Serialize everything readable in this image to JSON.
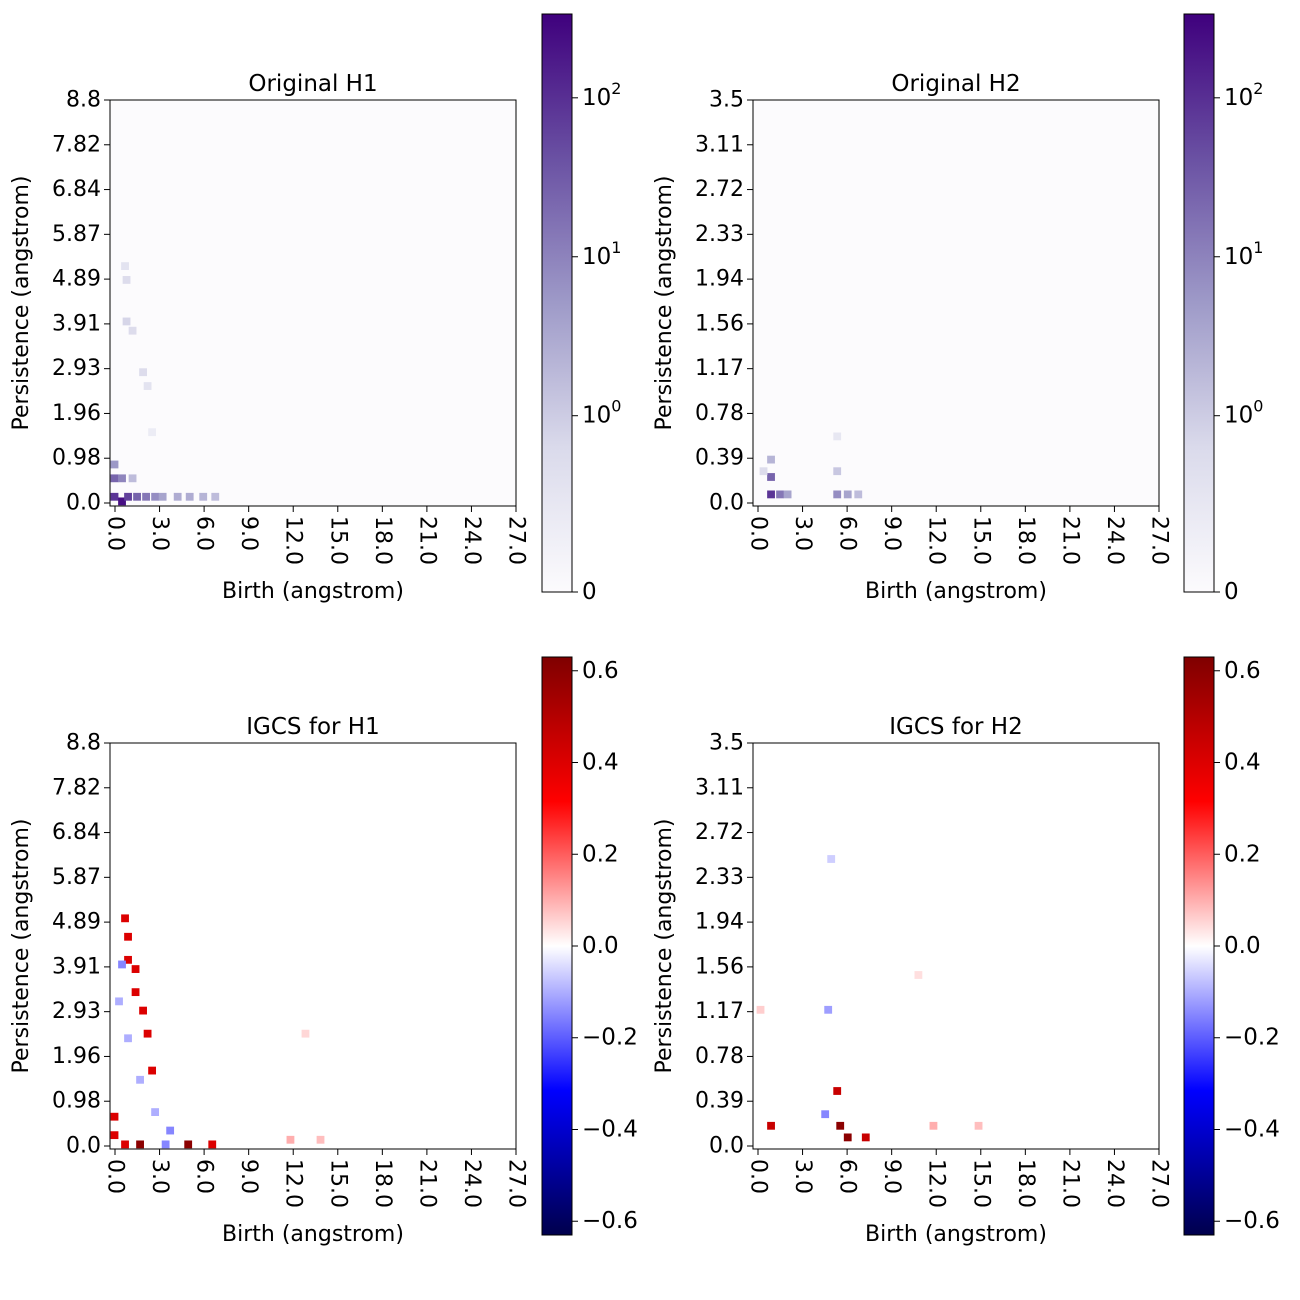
{
  "figure_colors": {
    "purple_low": "#fcfbfd",
    "purple_high": "#3f007d",
    "div_neg": "#00004c",
    "div_pos": "#7f0000",
    "div_red": "#ff0000",
    "div_blue": "#0000ff",
    "div_mid": "#ffffff"
  },
  "chart_data": [
    {
      "id": "orig-h1",
      "type": "heatmap",
      "title": "Original H1",
      "xlabel": "Birth (angstrom)",
      "ylabel": "Persistence (angstrom)",
      "x_ticks": [
        "0.0",
        "3.0",
        "6.0",
        "9.0",
        "12.0",
        "15.0",
        "18.0",
        "21.0",
        "24.0",
        "27.0"
      ],
      "y_ticks": [
        "0.0",
        "0.98",
        "1.96",
        "2.93",
        "3.91",
        "4.89",
        "5.87",
        "6.84",
        "7.82",
        "8.8"
      ],
      "xlim": [
        0,
        27
      ],
      "ylim": [
        0,
        8.8
      ],
      "colormap": "Purples",
      "scale": "symlog",
      "colorbar_ticks": [
        "0",
        "10^0",
        "10^1",
        "10^2"
      ],
      "cells": [
        {
          "x": 0.3,
          "y": 0.2,
          "v": 150
        },
        {
          "x": 0.8,
          "y": 0.1,
          "v": 300
        },
        {
          "x": 1.2,
          "y": 0.2,
          "v": 120
        },
        {
          "x": 0.3,
          "y": 0.6,
          "v": 60
        },
        {
          "x": 0.3,
          "y": 0.9,
          "v": 20
        },
        {
          "x": 0.8,
          "y": 0.6,
          "v": 30
        },
        {
          "x": 1.8,
          "y": 0.2,
          "v": 60
        },
        {
          "x": 2.4,
          "y": 0.2,
          "v": 40
        },
        {
          "x": 3.0,
          "y": 0.2,
          "v": 25
        },
        {
          "x": 3.5,
          "y": 0.2,
          "v": 15
        },
        {
          "x": 4.5,
          "y": 0.2,
          "v": 12
        },
        {
          "x": 5.3,
          "y": 0.2,
          "v": 12
        },
        {
          "x": 6.2,
          "y": 0.2,
          "v": 10
        },
        {
          "x": 7.0,
          "y": 0.2,
          "v": 8
        },
        {
          "x": 1.5,
          "y": 0.6,
          "v": 8
        },
        {
          "x": 1.0,
          "y": 5.2,
          "v": 2
        },
        {
          "x": 1.1,
          "y": 4.9,
          "v": 3
        },
        {
          "x": 1.1,
          "y": 4.0,
          "v": 4
        },
        {
          "x": 1.5,
          "y": 3.8,
          "v": 3
        },
        {
          "x": 2.2,
          "y": 2.9,
          "v": 3
        },
        {
          "x": 2.5,
          "y": 2.6,
          "v": 2
        },
        {
          "x": 2.8,
          "y": 1.6,
          "v": 1
        }
      ]
    },
    {
      "id": "orig-h2",
      "type": "heatmap",
      "title": "Original H2",
      "xlabel": "Birth (angstrom)",
      "ylabel": "Persistence (angstrom)",
      "x_ticks": [
        "0.0",
        "3.0",
        "6.0",
        "9.0",
        "12.0",
        "15.0",
        "18.0",
        "21.0",
        "24.0",
        "27.0"
      ],
      "y_ticks": [
        "0.0",
        "0.39",
        "0.78",
        "1.17",
        "1.56",
        "1.94",
        "2.33",
        "2.72",
        "3.11",
        "3.5"
      ],
      "xlim": [
        0,
        27
      ],
      "ylim": [
        0,
        3.5
      ],
      "colormap": "Purples",
      "scale": "symlog",
      "colorbar_ticks": [
        "0",
        "10^0",
        "10^1",
        "10^2"
      ],
      "cells": [
        {
          "x": 1.2,
          "y": 0.1,
          "v": 150
        },
        {
          "x": 1.2,
          "y": 0.25,
          "v": 60
        },
        {
          "x": 1.8,
          "y": 0.1,
          "v": 40
        },
        {
          "x": 2.3,
          "y": 0.1,
          "v": 15
        },
        {
          "x": 1.2,
          "y": 0.4,
          "v": 10
        },
        {
          "x": 0.7,
          "y": 0.3,
          "v": 3
        },
        {
          "x": 5.6,
          "y": 0.1,
          "v": 25
        },
        {
          "x": 6.3,
          "y": 0.1,
          "v": 15
        },
        {
          "x": 7.0,
          "y": 0.1,
          "v": 8
        },
        {
          "x": 5.6,
          "y": 0.3,
          "v": 6
        },
        {
          "x": 5.6,
          "y": 0.6,
          "v": 1.5
        }
      ]
    },
    {
      "id": "igcs-h1",
      "type": "heatmap",
      "title": "IGCS for H1",
      "xlabel": "Birth (angstrom)",
      "ylabel": "Persistence (angstrom)",
      "x_ticks": [
        "0.0",
        "3.0",
        "6.0",
        "9.0",
        "12.0",
        "15.0",
        "18.0",
        "21.0",
        "24.0",
        "27.0"
      ],
      "y_ticks": [
        "0.0",
        "0.98",
        "1.96",
        "2.93",
        "3.91",
        "4.89",
        "5.87",
        "6.84",
        "7.82",
        "8.8"
      ],
      "xlim": [
        0,
        27
      ],
      "ylim": [
        0,
        8.8
      ],
      "colormap": "seismic",
      "vlim": [
        -0.63,
        0.63
      ],
      "colorbar_ticks": [
        "0.6",
        "0.4",
        "0.2",
        "0.0",
        "−0.2",
        "−0.4",
        "−0.6"
      ],
      "cells": [
        {
          "x": 1.0,
          "y": 5.0,
          "v": 0.4
        },
        {
          "x": 1.2,
          "y": 4.6,
          "v": 0.4
        },
        {
          "x": 1.2,
          "y": 4.1,
          "v": 0.4
        },
        {
          "x": 1.7,
          "y": 3.9,
          "v": 0.4
        },
        {
          "x": 1.7,
          "y": 3.4,
          "v": 0.4
        },
        {
          "x": 2.2,
          "y": 3.0,
          "v": 0.4
        },
        {
          "x": 2.5,
          "y": 2.5,
          "v": 0.4
        },
        {
          "x": 2.8,
          "y": 1.7,
          "v": 0.4
        },
        {
          "x": 0.3,
          "y": 0.7,
          "v": 0.4
        },
        {
          "x": 0.3,
          "y": 0.3,
          "v": 0.4
        },
        {
          "x": 2.0,
          "y": 0.1,
          "v": 0.6
        },
        {
          "x": 5.2,
          "y": 0.1,
          "v": 0.6
        },
        {
          "x": 6.8,
          "y": 0.1,
          "v": 0.4
        },
        {
          "x": 1.0,
          "y": 0.1,
          "v": 0.4
        },
        {
          "x": 0.8,
          "y": 4.0,
          "v": -0.15
        },
        {
          "x": 0.6,
          "y": 3.2,
          "v": -0.1
        },
        {
          "x": 1.2,
          "y": 2.4,
          "v": -0.1
        },
        {
          "x": 2.0,
          "y": 1.5,
          "v": -0.1
        },
        {
          "x": 3.0,
          "y": 0.8,
          "v": -0.1
        },
        {
          "x": 4.0,
          "y": 0.4,
          "v": -0.15
        },
        {
          "x": 3.7,
          "y": 0.1,
          "v": -0.15
        },
        {
          "x": 12.0,
          "y": 0.2,
          "v": 0.1
        },
        {
          "x": 14.0,
          "y": 0.2,
          "v": 0.08
        },
        {
          "x": 13.0,
          "y": 2.5,
          "v": 0.05
        }
      ]
    },
    {
      "id": "igcs-h2",
      "type": "heatmap",
      "title": "IGCS for H2",
      "xlabel": "Birth (angstrom)",
      "ylabel": "Persistence (angstrom)",
      "x_ticks": [
        "0.0",
        "3.0",
        "6.0",
        "9.0",
        "12.0",
        "15.0",
        "18.0",
        "21.0",
        "24.0",
        "27.0"
      ],
      "y_ticks": [
        "0.0",
        "0.39",
        "0.78",
        "1.17",
        "1.56",
        "1.94",
        "2.33",
        "2.72",
        "3.11",
        "3.5"
      ],
      "xlim": [
        0,
        27
      ],
      "ylim": [
        0,
        3.5
      ],
      "colormap": "seismic",
      "vlim": [
        -0.63,
        0.63
      ],
      "colorbar_ticks": [
        "0.6",
        "0.4",
        "0.2",
        "0.0",
        "−0.2",
        "−0.4",
        "−0.6"
      ],
      "cells": [
        {
          "x": 1.2,
          "y": 0.2,
          "v": 0.45
        },
        {
          "x": 5.6,
          "y": 0.5,
          "v": 0.45
        },
        {
          "x": 5.8,
          "y": 0.2,
          "v": 0.6
        },
        {
          "x": 6.3,
          "y": 0.1,
          "v": 0.6
        },
        {
          "x": 7.5,
          "y": 0.1,
          "v": 0.45
        },
        {
          "x": 5.0,
          "y": 1.2,
          "v": -0.12
        },
        {
          "x": 4.8,
          "y": 0.3,
          "v": -0.15
        },
        {
          "x": 5.2,
          "y": 2.5,
          "v": -0.06
        },
        {
          "x": 0.5,
          "y": 1.2,
          "v": 0.06
        },
        {
          "x": 12.0,
          "y": 0.2,
          "v": 0.1
        },
        {
          "x": 15.0,
          "y": 0.2,
          "v": 0.08
        },
        {
          "x": 11.0,
          "y": 1.5,
          "v": 0.04
        }
      ]
    }
  ]
}
